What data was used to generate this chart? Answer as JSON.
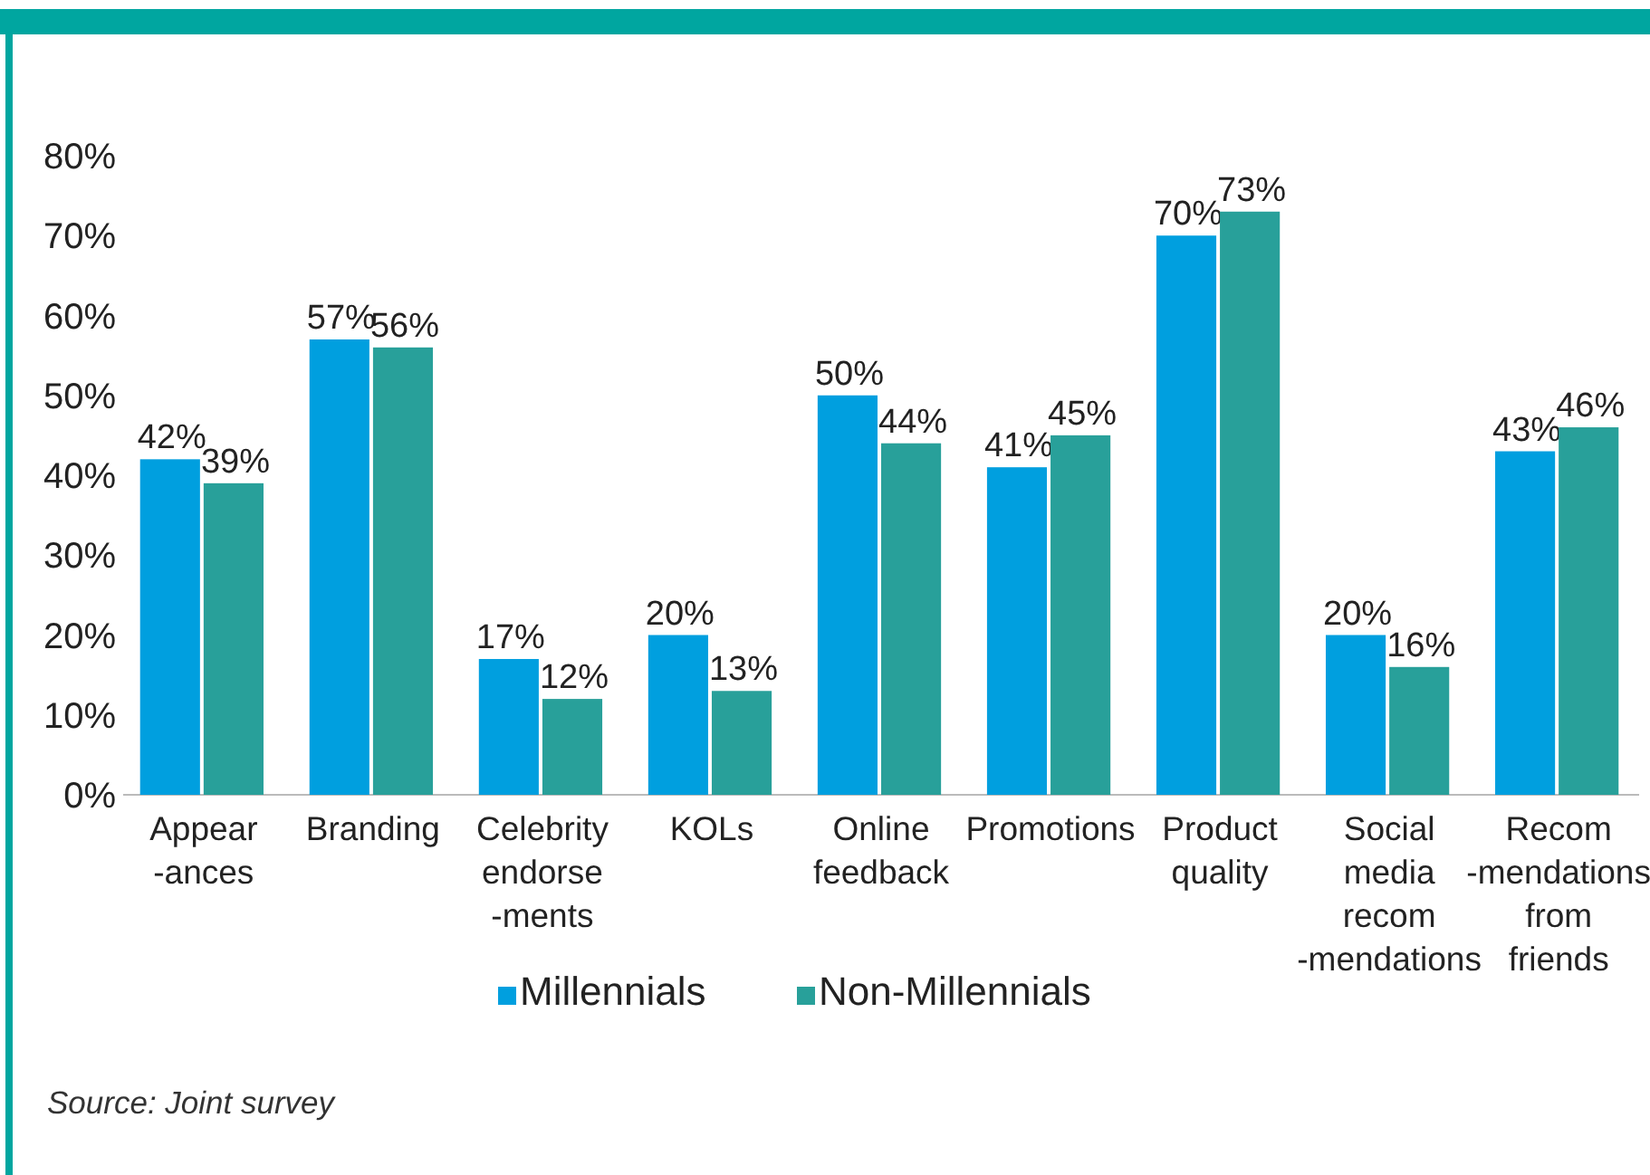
{
  "chart_data": {
    "type": "bar",
    "categories": [
      "Appear\n-ances",
      "Branding",
      "Celebrity\nendorse\n-ments",
      "KOLs",
      "Online\nfeedback",
      "Promotions",
      "Product\nquality",
      "Social\nmedia\nrecom\n-mendations",
      "Recom\n-mendations\nfrom\nfriends"
    ],
    "series": [
      {
        "name": "Millennials",
        "color": "#009fdf",
        "values": [
          42,
          57,
          17,
          20,
          50,
          41,
          70,
          20,
          43
        ],
        "value_labels": [
          "42%",
          "57%",
          "17%",
          "20%",
          "50%",
          "41%",
          "70%",
          "20%",
          "43%"
        ]
      },
      {
        "name": "Non-Millennials",
        "color": "#28a09a",
        "values": [
          39,
          56,
          12,
          13,
          44,
          45,
          73,
          16,
          46
        ],
        "value_labels": [
          "39%",
          "56%",
          "12%",
          "13%",
          "44%",
          "45%",
          "73%",
          "16%",
          "46%"
        ]
      }
    ],
    "ylim": [
      0,
      80
    ],
    "yticks": [
      {
        "value": 0,
        "label": "0%"
      },
      {
        "value": 10,
        "label": "10%"
      },
      {
        "value": 20,
        "label": "20%"
      },
      {
        "value": 30,
        "label": "30%"
      },
      {
        "value": 40,
        "label": "40%"
      },
      {
        "value": 50,
        "label": "50%"
      },
      {
        "value": 60,
        "label": "60%"
      },
      {
        "value": 70,
        "label": "70%"
      },
      {
        "value": 80,
        "label": "80%"
      }
    ],
    "grid": false,
    "legend": "bottom",
    "annotations": [
      "Source: Joint survey"
    ]
  }
}
